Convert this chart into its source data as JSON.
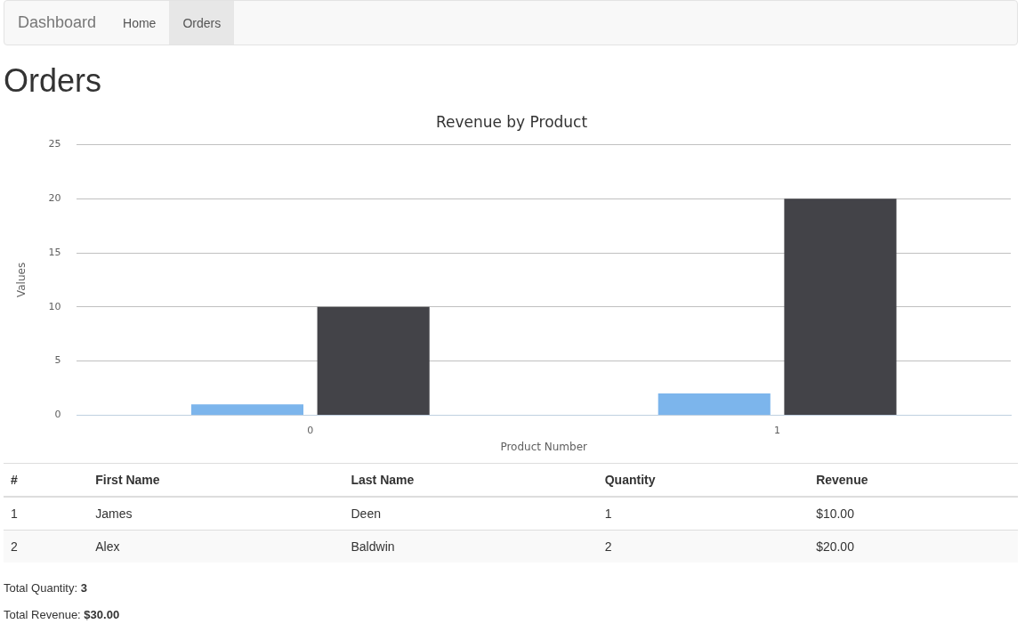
{
  "chart_data": [
    {
      "type": "other",
      "title": "Orders",
      "annotations": [
        "Dashboard",
        "Home",
        "Orders"
      ]
    },
    {
      "type": "bar",
      "title": "Revenue by Product",
      "xlabel": "Product Number",
      "ylabel": "Values",
      "categories": [
        "0",
        "1"
      ],
      "series": [
        {
          "color": "#7cb5ec",
          "values": [
            1,
            2
          ]
        },
        {
          "color": "#434348",
          "values": [
            10,
            20
          ]
        }
      ],
      "ylim": [
        0,
        25
      ],
      "yticks": [
        0,
        5,
        10,
        15,
        20,
        25
      ],
      "grid": "y",
      "legend": false
    },
    {
      "type": "other",
      "annotations": [
        "#",
        "First Name",
        "Last Name",
        "Quantity",
        "Revenue",
        "1",
        "James",
        "Deen",
        "1",
        "$10.00",
        "2",
        "Alex",
        "Baldwin",
        "2",
        "$20.00",
        "Total Quantity: 3",
        "Total Revenue: $30.00"
      ]
    }
  ]
}
